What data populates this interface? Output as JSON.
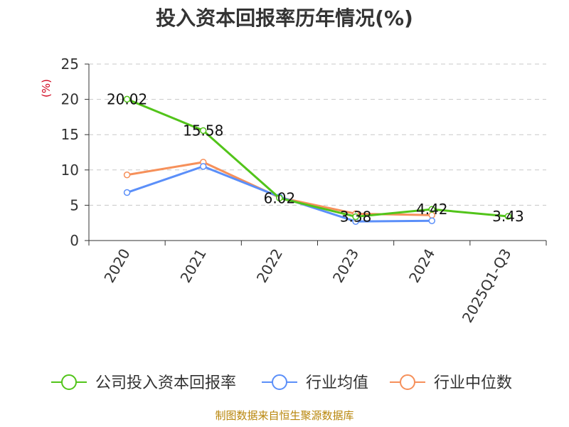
{
  "chart_data": {
    "type": "line",
    "title": "投入资本回报率历年情况(%)",
    "ylabel": "(%)",
    "xlabel": "",
    "categories": [
      "2020",
      "2021",
      "2022",
      "2023",
      "2024",
      "2025Q1-Q3"
    ],
    "ylim": [
      0,
      25
    ],
    "yticks": [
      0,
      5,
      10,
      15,
      20,
      25
    ],
    "grid": true,
    "legend_position": "bottom",
    "series": [
      {
        "name": "公司投入资本回报率",
        "color": "#52c41a",
        "values": [
          20.02,
          15.58,
          6.02,
          3.38,
          4.42,
          3.43
        ],
        "labels": [
          "20.02",
          "15.58",
          "6.02",
          "3.38",
          "4.42",
          "3.43"
        ]
      },
      {
        "name": "行业均值",
        "color": "#5b8ff9",
        "values": [
          6.8,
          10.5,
          6.2,
          2.7,
          2.8,
          null
        ]
      },
      {
        "name": "行业中位数",
        "color": "#f6905a",
        "values": [
          9.3,
          11.1,
          6.1,
          3.8,
          3.6,
          null
        ]
      }
    ]
  },
  "source": "制图数据来自恒生聚源数据库"
}
